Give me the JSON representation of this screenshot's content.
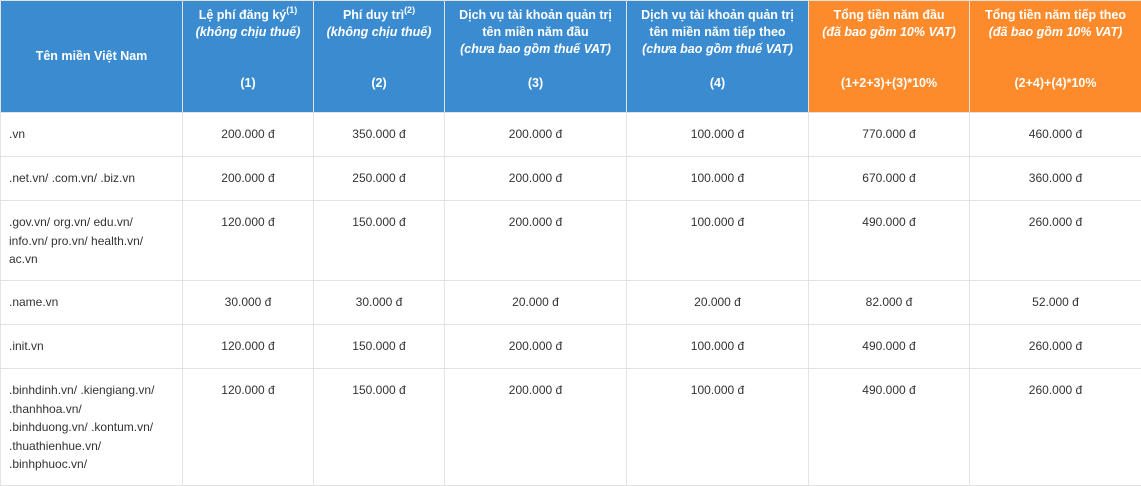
{
  "headers": {
    "domain": "Tên miền Việt Nam",
    "reg": {
      "title": "Lệ phí đăng ký",
      "sup": "(1)",
      "note": "(không chịu thuế)",
      "code": "(1)"
    },
    "maint": {
      "title": "Phí duy trì",
      "sup": "(2)",
      "note": "(không chịu thuế)",
      "code": "(2)"
    },
    "svc_first": {
      "line1": "Dịch vụ tài khoản quản trị",
      "line2": "tên miền năm đầu",
      "note": "(chưa bao gồm thuế VAT)",
      "code": "(3)"
    },
    "svc_next": {
      "line1": "Dịch vụ tài khoản quản trị",
      "line2": "tên miền năm tiếp theo",
      "note": "(chưa bao gồm thuế VAT)",
      "code": "(4)"
    },
    "total_first": {
      "title": "Tổng tiền năm đầu",
      "note": "(đã bao gồm 10% VAT)",
      "formula": "(1+2+3)+(3)*10%"
    },
    "total_next": {
      "title": "Tổng tiền năm tiếp theo",
      "note": "(đã bao gồm 10% VAT)",
      "formula": "(2+4)+(4)*10%"
    }
  },
  "rows": [
    {
      "name_lines": [
        ".vn"
      ],
      "reg": "200.000 đ",
      "maint": "350.000 đ",
      "svc_first": "200.000 đ",
      "svc_next": "100.000 đ",
      "total_first": "770.000 đ",
      "total_next": "460.000 đ"
    },
    {
      "name_lines": [
        ".net.vn/ .com.vn/ .biz.vn"
      ],
      "reg": "200.000 đ",
      "maint": "250.000 đ",
      "svc_first": "200.000 đ",
      "svc_next": "100.000 đ",
      "total_first": "670.000 đ",
      "total_next": "360.000 đ"
    },
    {
      "name_lines": [
        ".gov.vn/ org.vn/ edu.vn/",
        "info.vn/ pro.vn/ health.vn/",
        "ac.vn"
      ],
      "reg": "120.000 đ",
      "maint": "150.000 đ",
      "svc_first": "200.000 đ",
      "svc_next": "100.000 đ",
      "total_first": "490.000 đ",
      "total_next": "260.000 đ"
    },
    {
      "name_lines": [
        ".name.vn"
      ],
      "reg": "30.000 đ",
      "maint": "30.000 đ",
      "svc_first": "20.000 đ",
      "svc_next": "20.000 đ",
      "total_first": "82.000 đ",
      "total_next": "52.000 đ"
    },
    {
      "name_lines": [
        ".init.vn"
      ],
      "reg": "120.000 đ",
      "maint": "150.000 đ",
      "svc_first": "200.000 đ",
      "svc_next": "100.000 đ",
      "total_first": "490.000 đ",
      "total_next": "260.000 đ"
    },
    {
      "name_lines": [
        ".binhdinh.vn/ .kiengiang.vn/",
        ".thanhhoa.vn/",
        ".binhduong.vn/ .kontum.vn/",
        ".thuathienhue.vn/",
        ".binhphuoc.vn/"
      ],
      "reg": "120.000 đ",
      "maint": "150.000 đ",
      "svc_first": "200.000 đ",
      "svc_next": "100.000 đ",
      "total_first": "490.000 đ",
      "total_next": "260.000 đ"
    }
  ]
}
